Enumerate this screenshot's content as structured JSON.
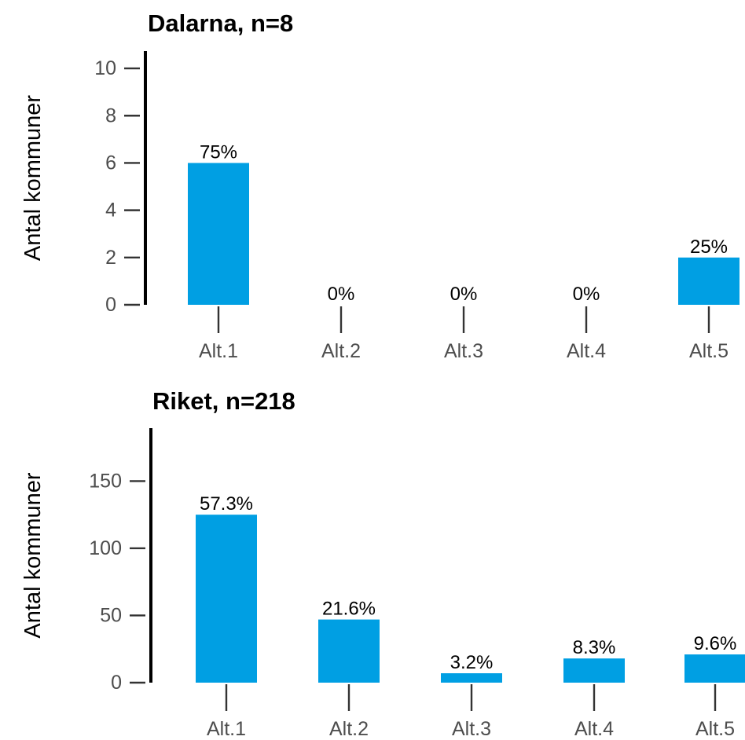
{
  "colors": {
    "bar": "#009fe3",
    "axis": "#000000",
    "tick_text": "#4d4d4d"
  },
  "chart_data": [
    {
      "type": "bar",
      "title": "Dalarna, n=8",
      "ylabel": "Antal kommuner",
      "xlabel": "",
      "categories": [
        "Alt.1",
        "Alt.2",
        "Alt.3",
        "Alt.4",
        "Alt.5"
      ],
      "values": [
        6,
        0,
        0,
        0,
        2
      ],
      "data_labels": [
        "75%",
        "0%",
        "0%",
        "0%",
        "25%"
      ],
      "yticks": [
        0,
        2,
        4,
        6,
        8,
        10
      ],
      "ytick_labels": [
        "0",
        "2",
        "4",
        "6",
        "8",
        "10"
      ],
      "ylim": [
        0,
        10.8
      ],
      "grid": false,
      "legend": "none"
    },
    {
      "type": "bar",
      "title": "Riket, n=218",
      "ylabel": "Antal kommuner",
      "xlabel": "",
      "categories": [
        "Alt.1",
        "Alt.2",
        "Alt.3",
        "Alt.4",
        "Alt.5"
      ],
      "values": [
        125,
        47,
        7,
        18,
        21
      ],
      "data_labels": [
        "57.3%",
        "21.6%",
        "3.2%",
        "8.3%",
        "9.6%"
      ],
      "yticks": [
        0,
        50,
        100,
        150
      ],
      "ytick_labels": [
        "0",
        "50",
        "100",
        "150"
      ],
      "ylim": [
        0,
        190
      ],
      "grid": false,
      "legend": "none"
    }
  ]
}
